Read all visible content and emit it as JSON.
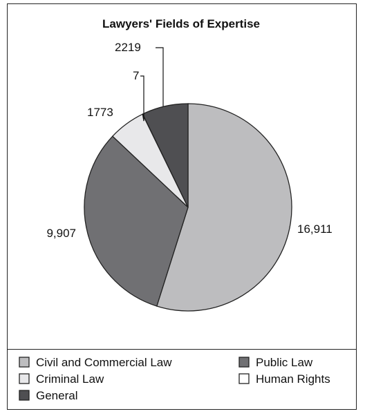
{
  "chart_data": {
    "type": "pie",
    "title": "Lawyers' Fields of Expertise",
    "slices": [
      {
        "label": "Civil and Commercial Law",
        "value": 16911,
        "value_label": "16,911",
        "color": "#bdbdbf"
      },
      {
        "label": "Public Law",
        "value": 9907,
        "value_label": "9,907",
        "color": "#707073"
      },
      {
        "label": "Criminal Law",
        "value": 1773,
        "value_label": "1773",
        "color": "#e8e8ea"
      },
      {
        "label": "Human Rights",
        "value": 7,
        "value_label": "7",
        "color": "#ffffff"
      },
      {
        "label": "General",
        "value": 2219,
        "value_label": "2219",
        "color": "#4f4f52"
      }
    ],
    "legend_placement": "bottom"
  }
}
